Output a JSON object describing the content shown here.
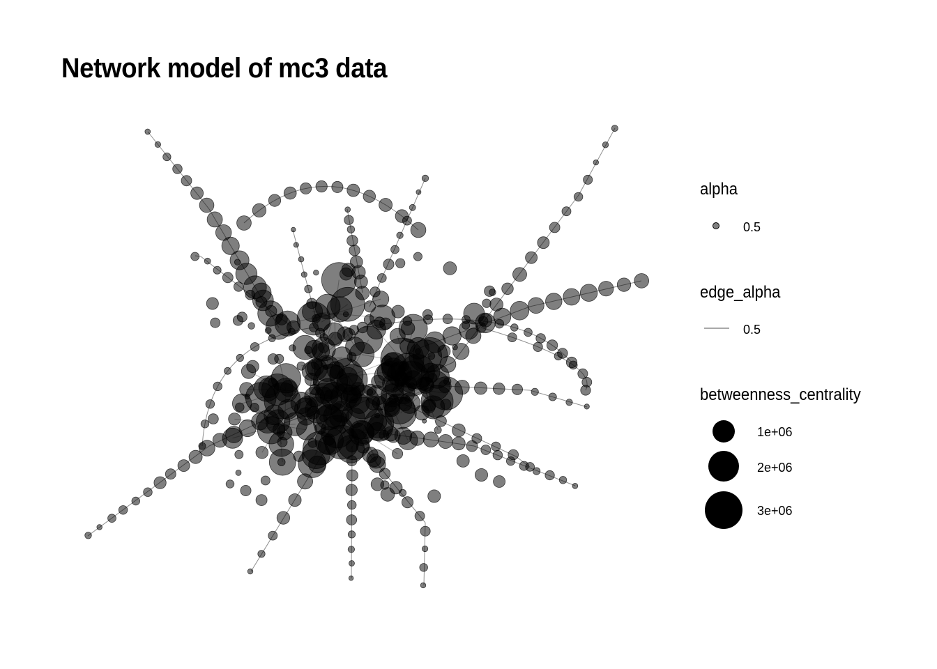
{
  "title": "Network model of mc3 data",
  "legend": {
    "alpha": {
      "title": "alpha",
      "label": "0.5"
    },
    "edge_alpha": {
      "title": "edge_alpha",
      "label": "0.5"
    },
    "size": {
      "title": "betweenness_centrality",
      "items": [
        {
          "label": "1e+06",
          "value": 1000000
        },
        {
          "label": "2e+06",
          "value": 2000000
        },
        {
          "label": "3e+06",
          "value": 3000000
        }
      ]
    }
  },
  "colors": {
    "node": "#000000",
    "edge": "#333333",
    "background": "#ffffff"
  }
}
